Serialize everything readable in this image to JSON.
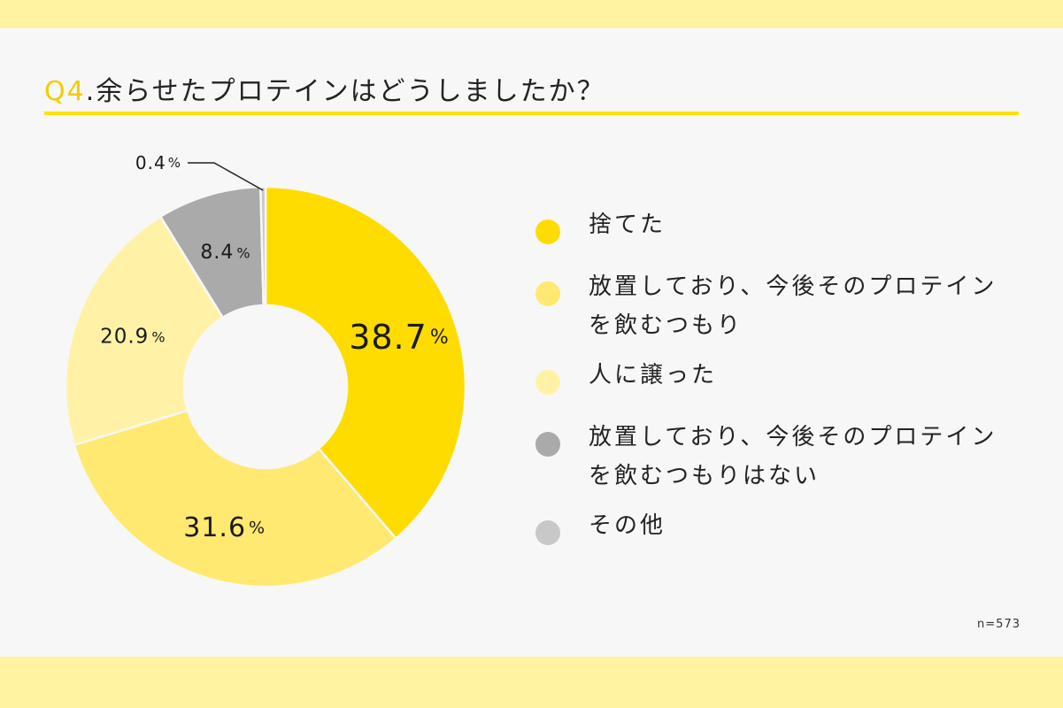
{
  "header": {
    "qnum": "Q4",
    "title": ".余らせたプロテインはどうしましたか？"
  },
  "footer": {
    "note": "n=573"
  },
  "chart_data": {
    "type": "pie",
    "subtype": "donut",
    "unit": "%",
    "categories": [
      "捨てた",
      "放置しており、今後そのプロテインを飲むつもり",
      "人に譲った",
      "放置しており、今後そのプロテインを飲むつもりはない",
      "その他"
    ],
    "values": [
      38.7,
      31.6,
      20.9,
      8.4,
      0.4
    ],
    "value_labels": [
      "38.7",
      "31.6",
      "20.9",
      "8.4",
      "0.4"
    ],
    "colors": [
      "#ffdc00",
      "#ffe970",
      "#fff2a6",
      "#aaaaaa",
      "#c8c8c8"
    ],
    "legend_position": "right"
  }
}
